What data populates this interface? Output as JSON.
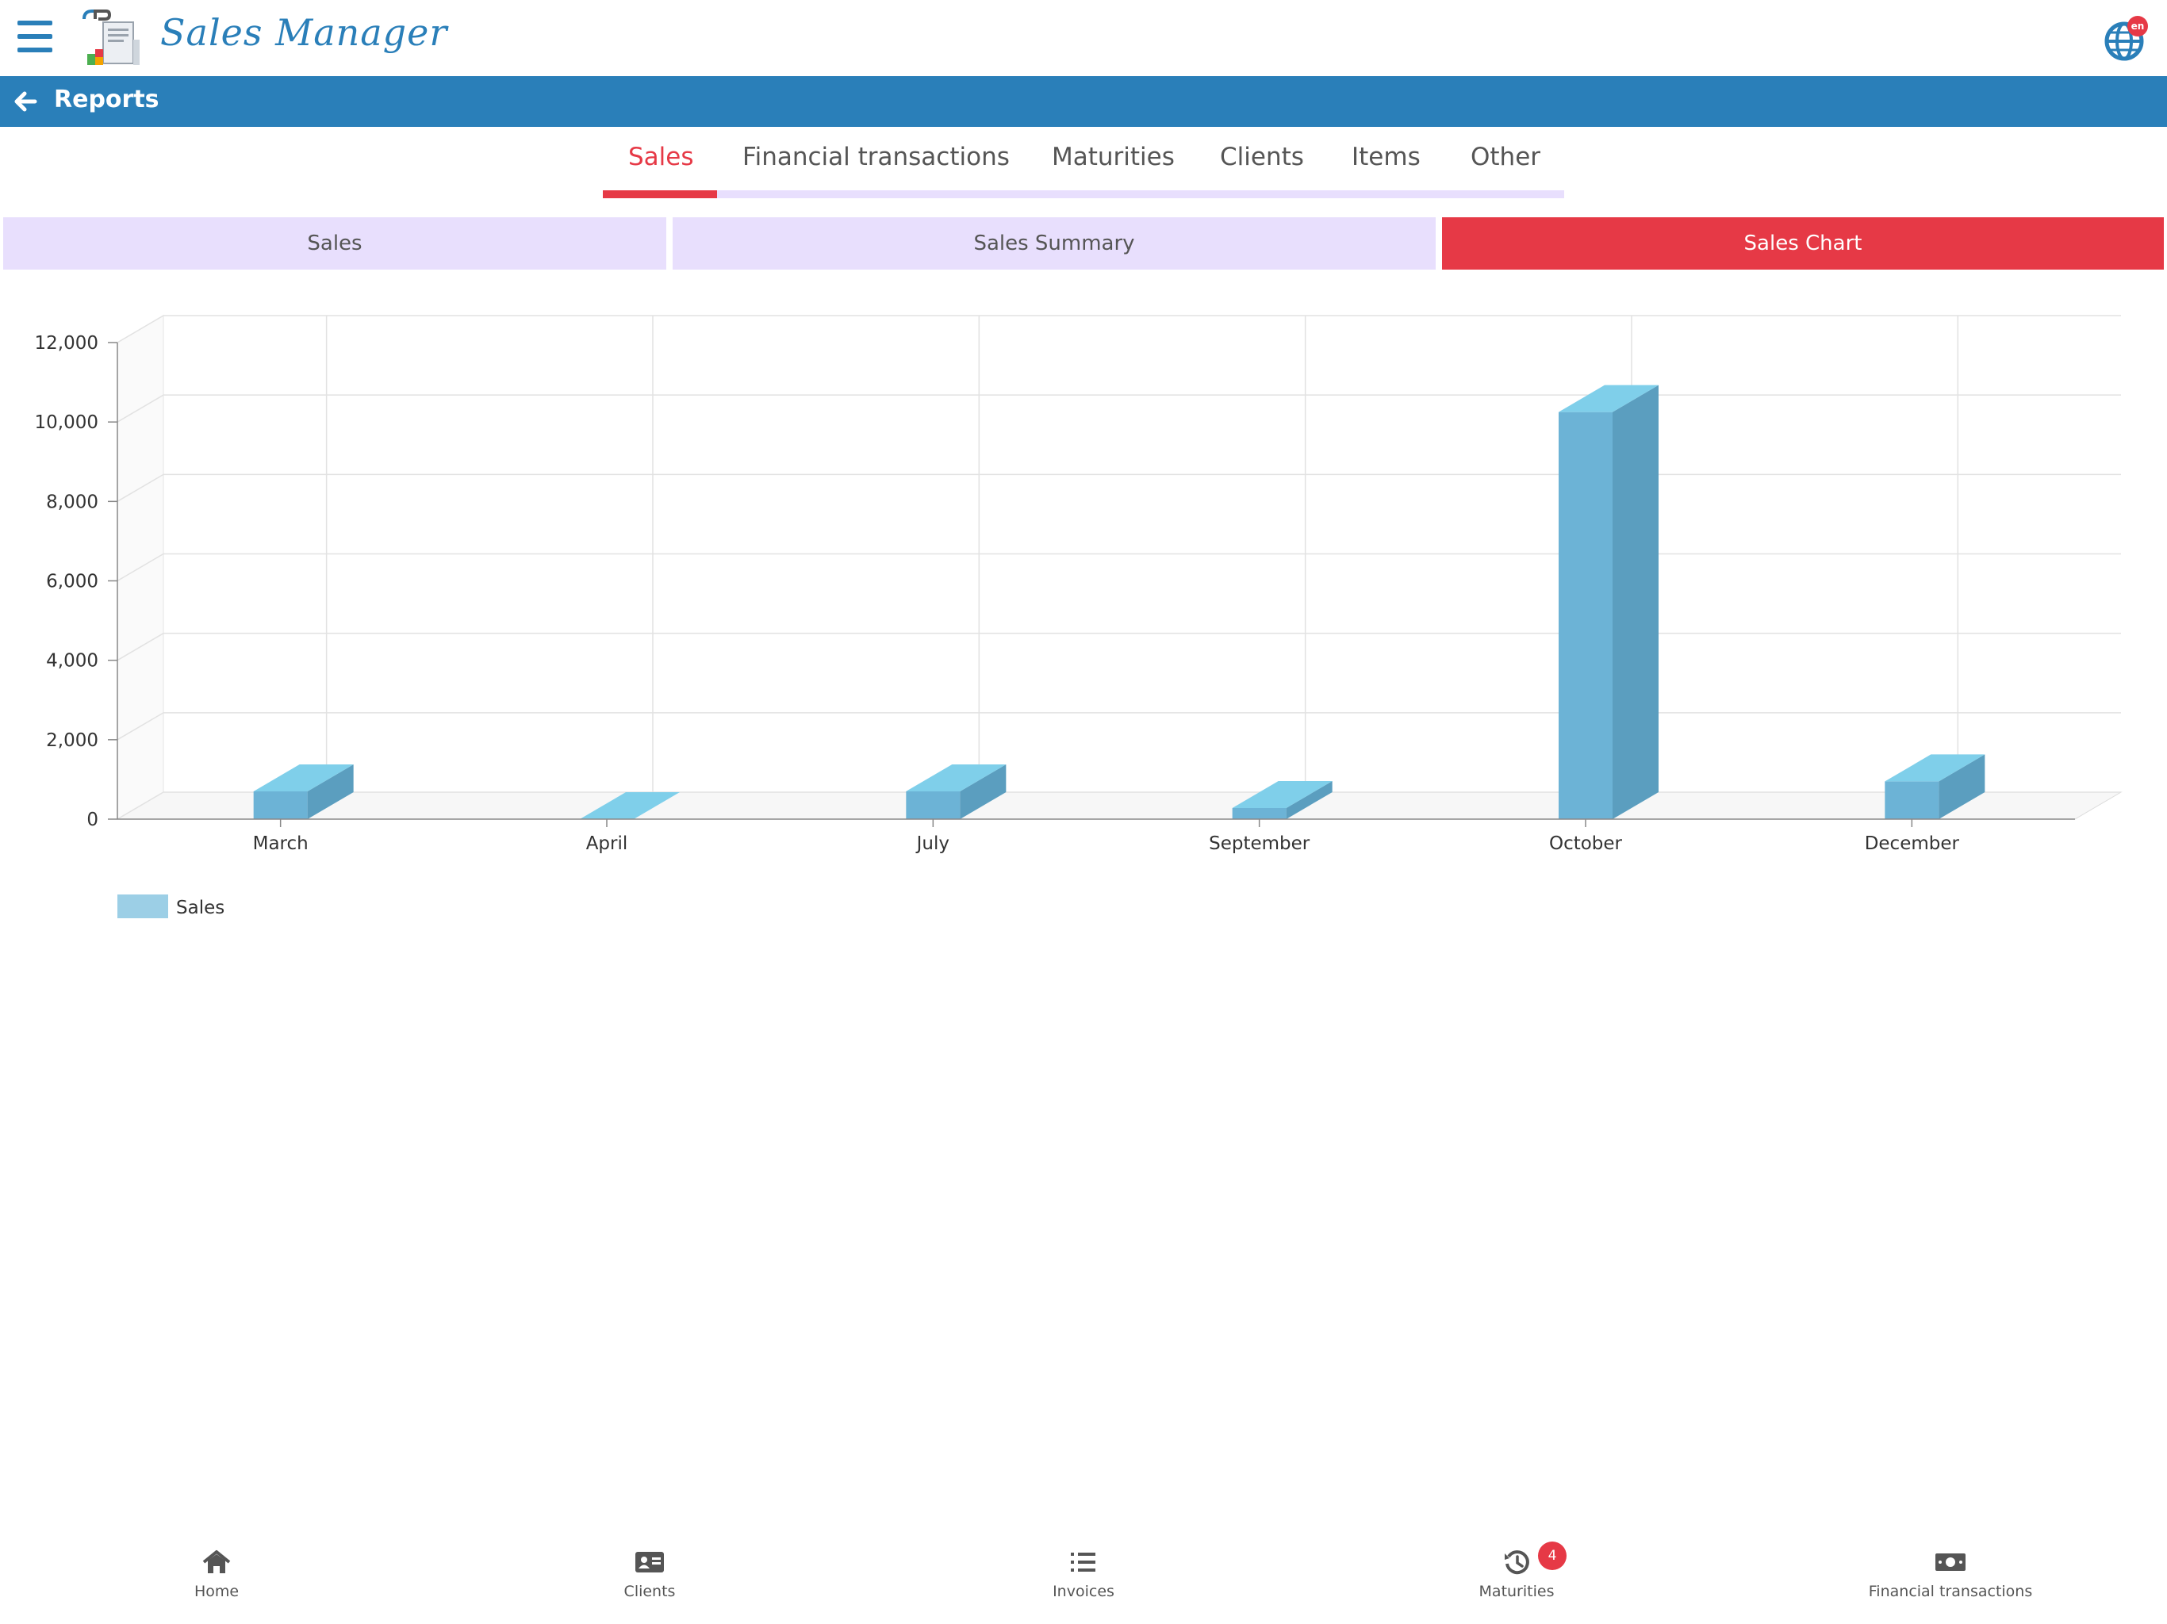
{
  "header": {
    "app_name": "Sales Manager",
    "language_badge": "en",
    "icons": {
      "menu": "hamburger-icon",
      "language": "globe-icon",
      "logo": "app-logo"
    }
  },
  "title_bar": {
    "title": "Reports",
    "back_icon": "arrow-left-icon"
  },
  "main_tabs": [
    {
      "label": "Sales",
      "active": true
    },
    {
      "label": "Financial transactions",
      "active": false
    },
    {
      "label": "Maturities",
      "active": false
    },
    {
      "label": "Clients",
      "active": false
    },
    {
      "label": "Items",
      "active": false
    },
    {
      "label": "Other",
      "active": false
    }
  ],
  "sub_tabs": [
    {
      "label": "Sales",
      "active": false
    },
    {
      "label": "Sales Summary",
      "active": false
    },
    {
      "label": "Sales Chart",
      "active": true
    }
  ],
  "chart_data": {
    "type": "bar",
    "three_d": true,
    "categories": [
      "March",
      "April",
      "July",
      "September",
      "October",
      "December"
    ],
    "series": [
      {
        "name": "Sales",
        "values": [
          700,
          0,
          700,
          280,
          10250,
          950
        ],
        "color": "#6cb3d6"
      }
    ],
    "y_ticks": [
      "0",
      "2,000",
      "4,000",
      "6,000",
      "8,000",
      "10,000",
      "12,000"
    ],
    "ylim": [
      0,
      12000
    ],
    "grid": true,
    "legend_position": "bottom-left"
  },
  "bottom_nav": [
    {
      "label": "Home",
      "icon": "home-icon"
    },
    {
      "label": "Clients",
      "icon": "contact-card-icon"
    },
    {
      "label": "Invoices",
      "icon": "list-icon"
    },
    {
      "label": "Maturities",
      "icon": "history-icon",
      "badge": "4"
    },
    {
      "label": "Financial transactions",
      "icon": "money-bill-icon"
    }
  ],
  "colors": {
    "primary": "#2a7fb9",
    "accent": "#e63946",
    "tab_light": "#e8dffd"
  }
}
